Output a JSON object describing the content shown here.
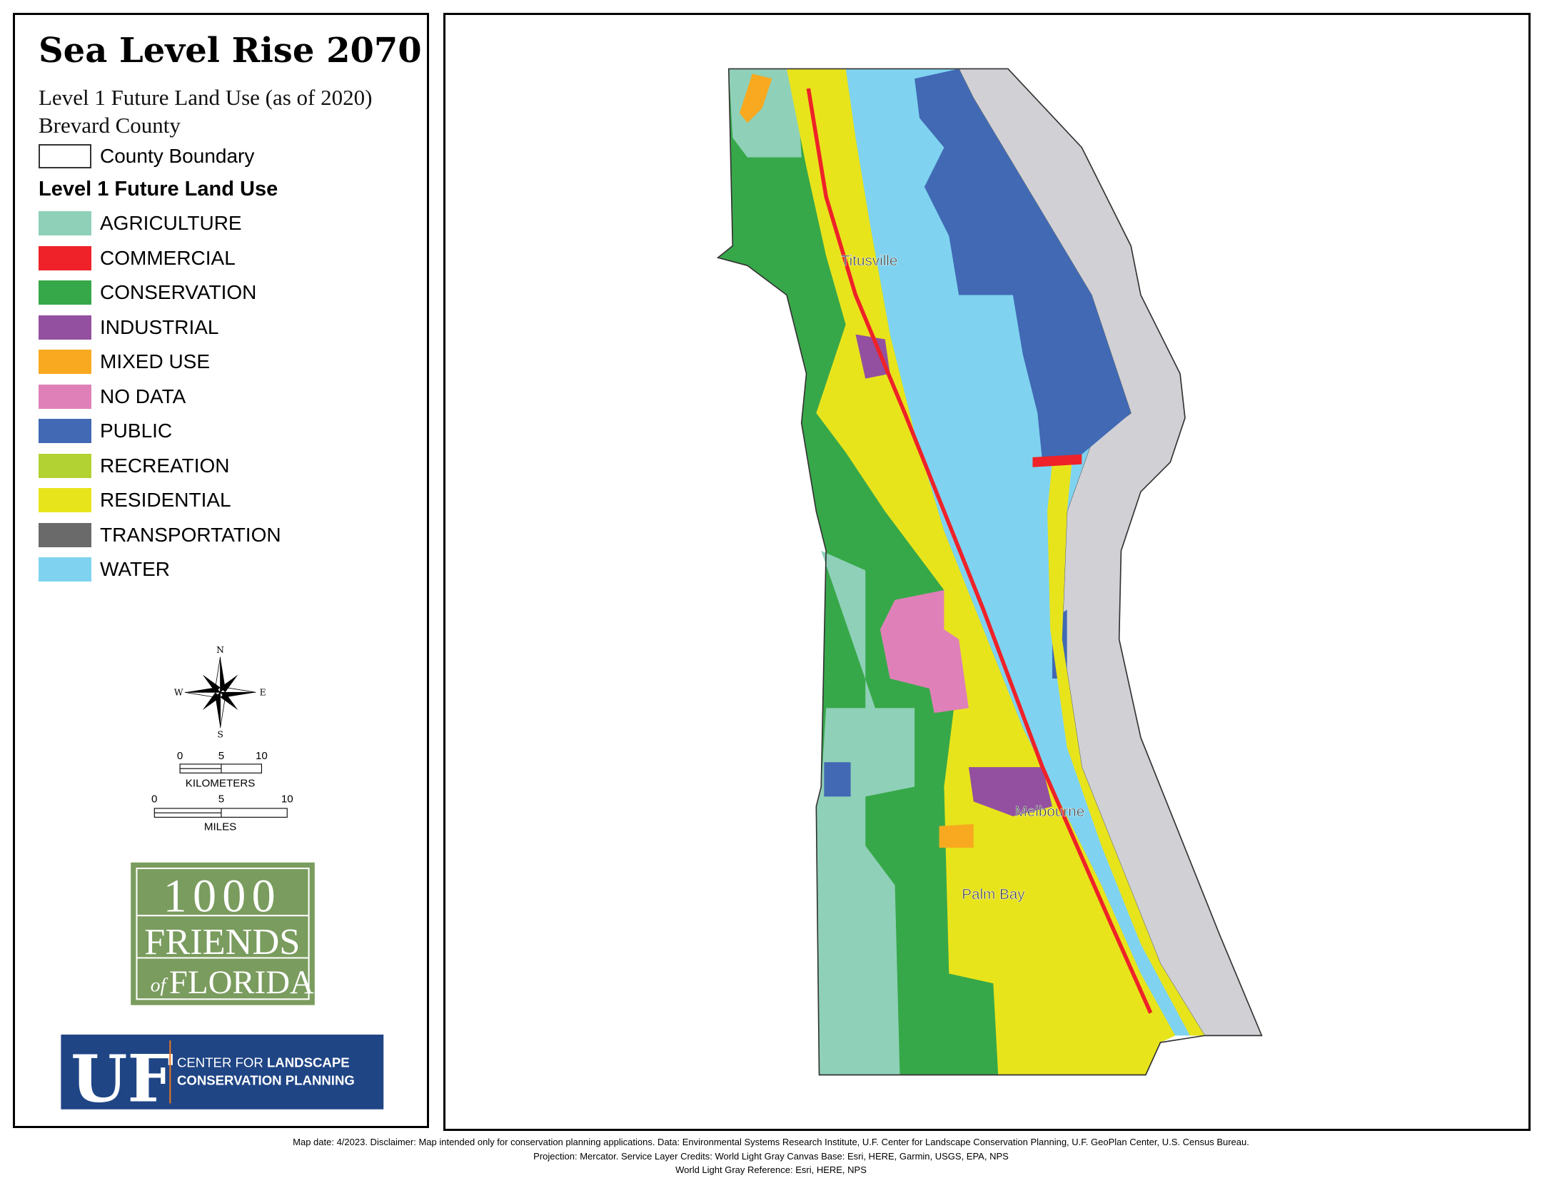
{
  "legend": {
    "title": "Sea Level Rise 2070",
    "subtitle": "Level 1 Future Land Use (as of 2020)",
    "county": "Brevard County",
    "boundary_label": "County Boundary",
    "heading": "Level 1 Future Land Use",
    "items": [
      {
        "label": "AGRICULTURE",
        "color": "#8fd0b8"
      },
      {
        "label": "COMMERCIAL",
        "color": "#ee2228"
      },
      {
        "label": "CONSERVATION",
        "color": "#37a849"
      },
      {
        "label": "INDUSTRIAL",
        "color": "#9350a0"
      },
      {
        "label": "MIXED USE",
        "color": "#f8a91f"
      },
      {
        "label": "NO DATA",
        "color": "#df81b8"
      },
      {
        "label": "PUBLIC",
        "color": "#4169b4"
      },
      {
        "label": "RECREATION",
        "color": "#b2d234"
      },
      {
        "label": "RESIDENTIAL",
        "color": "#e8e41c"
      },
      {
        "label": "TRANSPORTATION",
        "color": "#6a6a6a"
      },
      {
        "label": "WATER",
        "color": "#7fd3f0"
      }
    ]
  },
  "compass": {
    "n": "N",
    "s": "S",
    "e": "E",
    "w": "W"
  },
  "scale": {
    "km": {
      "ticks": [
        "0",
        "5",
        "10"
      ],
      "unit": "KILOMETERS"
    },
    "mi": {
      "ticks": [
        "0",
        "5",
        "10"
      ],
      "unit": "MILES"
    }
  },
  "logos": {
    "friends": [
      "1000",
      "FRIENDS",
      "of",
      "FLORIDA"
    ],
    "uf": {
      "mark": "UF",
      "line1_light": "CENTER FOR ",
      "line1_bold": "LANDSCAPE",
      "line2": "CONSERVATION PLANNING"
    }
  },
  "map": {
    "cities": [
      "Titusville",
      "Melbourne",
      "Palm Bay"
    ],
    "background_land": "#d1d1d5"
  },
  "footer": {
    "line1": "Map date: 4/2023.  Disclaimer: Map intended only for conservation planning applications.  Data: Environmental Systems Research Institute, U.F. Center for Landscape Conservation Planning, U.F. GeoPlan Center, U.S. Census Bureau.",
    "line2": "Projection: Mercator.  Service Layer Credits: World Light Gray Canvas Base: Esri, HERE, Garmin, USGS, EPA, NPS",
    "line3": "World Light Gray Reference: Esri, HERE, NPS"
  }
}
